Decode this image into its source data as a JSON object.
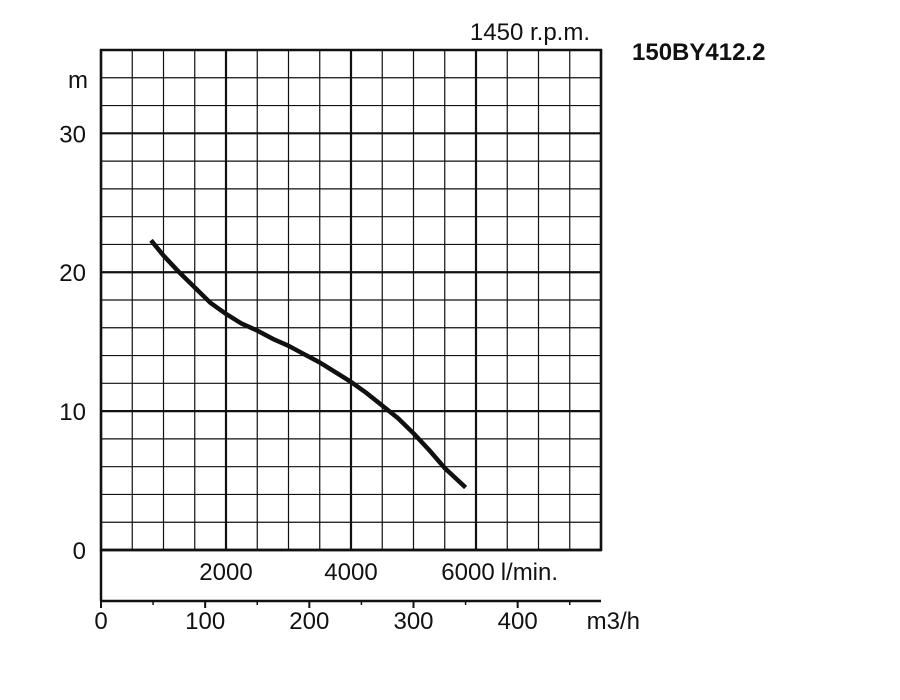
{
  "header": {
    "speed": "1450 r.p.m.",
    "model": "150BY412.2"
  },
  "chart_data": {
    "type": "line",
    "y_unit": "m",
    "x_unit_top": "l/min.",
    "x_unit_bottom": "m3/h",
    "ylim": [
      0,
      36
    ],
    "yticks": [
      "0",
      "10",
      "20",
      "30"
    ],
    "xlim_m3h": [
      0,
      480
    ],
    "xticks_m3h": [
      "0",
      "100",
      "200",
      "300",
      "400"
    ],
    "xticks_lmin": [
      "2000",
      "4000",
      "6000"
    ],
    "grid": true,
    "series": [
      {
        "x": [
          48,
          60,
          75,
          90,
          105,
          120,
          135,
          150,
          165,
          180,
          195,
          210,
          225,
          240,
          255,
          270,
          285,
          300,
          315,
          330,
          350
        ],
        "y": [
          22.3,
          21.2,
          20.0,
          18.9,
          17.8,
          17.0,
          16.3,
          15.8,
          15.2,
          14.7,
          14.1,
          13.5,
          12.8,
          12.1,
          11.3,
          10.4,
          9.5,
          8.4,
          7.2,
          5.9,
          4.5
        ]
      }
    ],
    "line_color": "#111111"
  }
}
